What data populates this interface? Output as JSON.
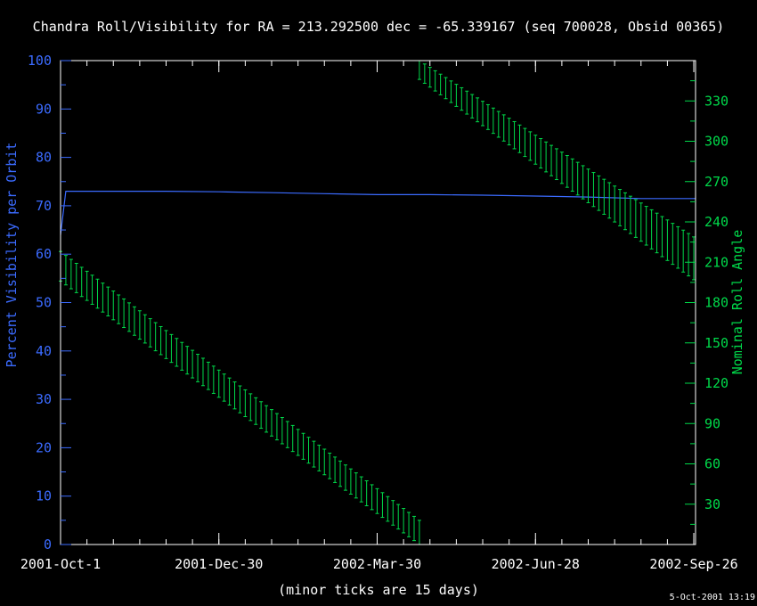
{
  "colors": {
    "background": "#000000",
    "frame": "#ffffff",
    "left_axis": "#3b6bff",
    "visibility_line": "#3b6bff",
    "right_axis": "#00d94a",
    "roll_bars": "#00d94a",
    "text": "#ffffff"
  },
  "chart_data": {
    "type": "line",
    "title": "Chandra Roll/Visibility for RA = 213.292500 dec = -65.339167 (seq 700028, Obsid 00365)",
    "xlabel": "(minor ticks are 15 days)",
    "ylabel_left": "Percent Visibility per Orbit",
    "ylabel_right": "Nominal Roll Angle",
    "timestamp": "5-Oct-2001 13:19",
    "x_unit": "days since 2001-Oct-1",
    "x_range": [
      0,
      361
    ],
    "x_major_ticks": [
      {
        "value": 0,
        "label": "2001-Oct-1"
      },
      {
        "value": 90,
        "label": "2001-Dec-30"
      },
      {
        "value": 180,
        "label": "2002-Mar-30"
      },
      {
        "value": 270,
        "label": "2002-Jun-28"
      },
      {
        "value": 360,
        "label": "2002-Sep-26"
      }
    ],
    "x_minor_tick_step": 15,
    "ylim_left": [
      0,
      100
    ],
    "y_left_ticks": [
      0,
      10,
      20,
      30,
      40,
      50,
      60,
      70,
      80,
      90,
      100
    ],
    "ylim_right": [
      0,
      360
    ],
    "y_right_ticks": [
      30,
      60,
      90,
      120,
      150,
      180,
      210,
      240,
      270,
      300,
      330
    ],
    "grid": false,
    "series": [
      {
        "name": "Percent Visibility per Orbit",
        "axis": "left",
        "x": [
          0,
          3,
          30,
          60,
          90,
          120,
          150,
          180,
          210,
          240,
          270,
          300,
          330,
          361
        ],
        "y": [
          64,
          73,
          73,
          73,
          72.9,
          72.7,
          72.5,
          72.3,
          72.3,
          72.2,
          72.0,
          71.8,
          71.5,
          71.5
        ]
      },
      {
        "name": "Nominal Roll Angle",
        "axis": "right",
        "type": "range-bars",
        "step": 3,
        "segments": [
          {
            "x_start": 0,
            "x_end": 204,
            "top_start": 218,
            "top_end": 18,
            "bottom_start": 196,
            "bottom_end": 0
          },
          {
            "x_start": 204,
            "x_end": 361,
            "top_start": 360,
            "top_end": 228,
            "bottom_start": 346,
            "bottom_end": 196
          }
        ]
      }
    ]
  }
}
